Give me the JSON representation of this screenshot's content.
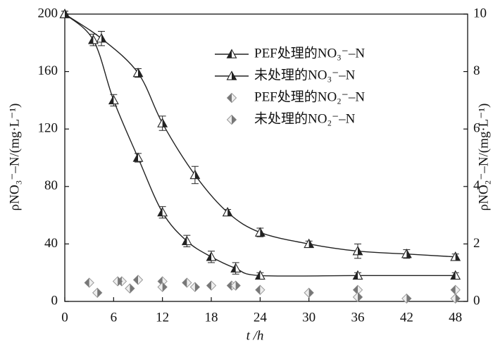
{
  "chart_data": {
    "type": "line",
    "x_label": "t /h",
    "y_label": "ρNO₃⁻–N/(mg·L⁻¹)",
    "y2_label": "ρNO₂⁻–N/(mg·L⁻¹)",
    "xlim": [
      0,
      49.5
    ],
    "xticks": [
      0,
      6,
      12,
      18,
      24,
      30,
      36,
      42,
      48
    ],
    "ylim": [
      0,
      200
    ],
    "yticks": [
      0,
      40,
      80,
      120,
      160,
      200
    ],
    "y2lim": [
      0,
      10
    ],
    "y2ticks": [
      0,
      2,
      4,
      6,
      8,
      10
    ],
    "legend": "upper right",
    "series": [
      {
        "name": "PEF处理的NO₃⁻–N",
        "color": "#222",
        "marker": "triangle-filled",
        "smooth": true,
        "x": [
          0,
          3.5,
          6,
          9,
          12,
          15,
          18,
          21,
          24,
          36,
          48
        ],
        "values": [
          200,
          182,
          140,
          100,
          62,
          42,
          31,
          23,
          18,
          18,
          18
        ],
        "errors": [
          2,
          4,
          4,
          3,
          4,
          4,
          4,
          4,
          2,
          2,
          2
        ]
      },
      {
        "name": "未处理的NO₃⁻–N",
        "color": "#222",
        "marker": "triangle-open",
        "smooth": true,
        "x": [
          0,
          4.5,
          9,
          12,
          16,
          20,
          24,
          30,
          36,
          42,
          48
        ],
        "values": [
          200,
          183,
          159,
          124,
          88,
          62,
          48,
          40,
          35,
          33,
          31
        ],
        "errors": [
          2,
          5,
          3,
          5,
          6,
          2,
          3,
          2,
          5,
          3,
          2
        ]
      },
      {
        "name": "PEF处理的NO₂⁻–N",
        "color": "#777",
        "marker": "diamond-left",
        "axis": "y2",
        "x": [
          3,
          7,
          9,
          12,
          15,
          18,
          20.5,
          24,
          36,
          48
        ],
        "values": [
          0.65,
          0.7,
          0.75,
          0.7,
          0.65,
          0.55,
          0.55,
          0.4,
          0.4,
          0.4
        ]
      },
      {
        "name": "未处理的NO₂⁻–N",
        "color": "#777",
        "marker": "diamond-right",
        "axis": "y2",
        "x": [
          4,
          6.5,
          8,
          12,
          16,
          21,
          30,
          36,
          42,
          48
        ],
        "values": [
          0.3,
          0.7,
          0.45,
          0.5,
          0.5,
          0.55,
          0.3,
          0.15,
          0.1,
          0.1
        ]
      }
    ]
  }
}
